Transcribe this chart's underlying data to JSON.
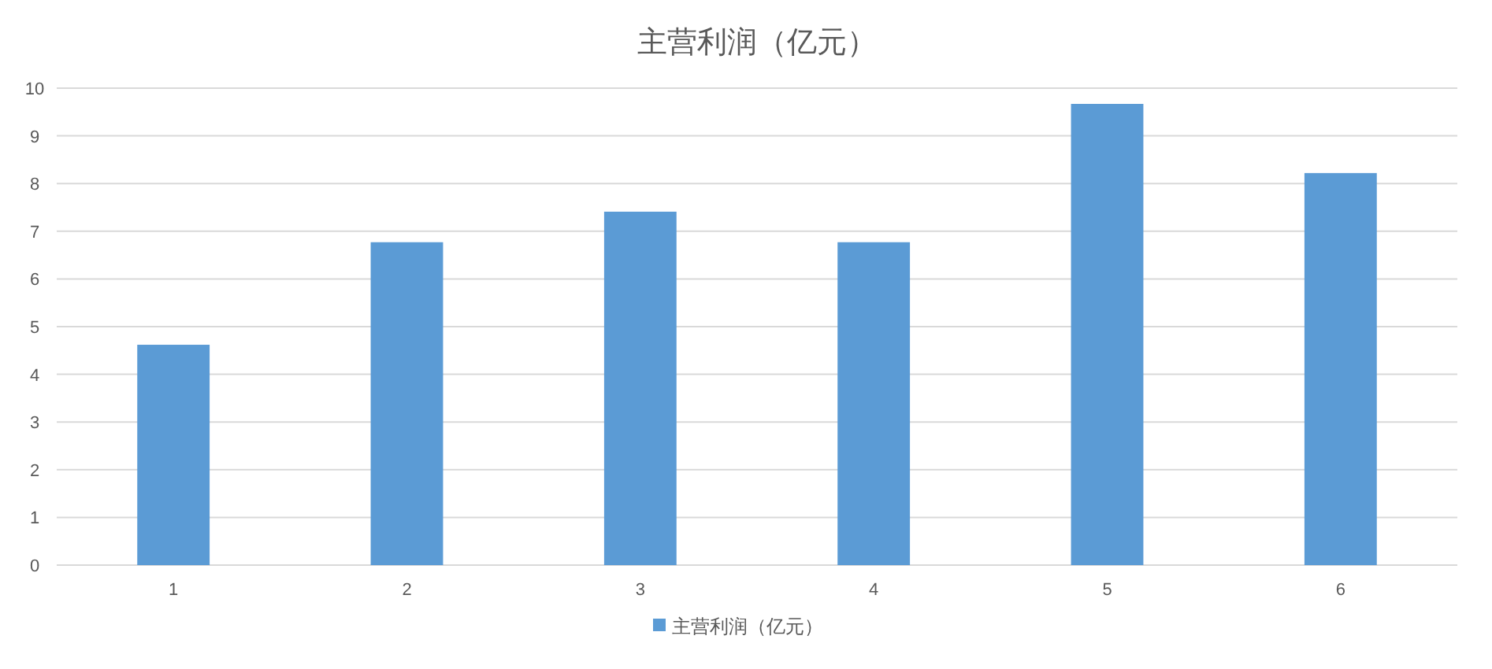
{
  "chart_data": {
    "type": "bar",
    "title": "主营利润（亿元）",
    "categories": [
      "1",
      "2",
      "3",
      "4",
      "5",
      "6"
    ],
    "series": [
      {
        "name": "主营利润（亿元）",
        "color": "#5b9bd5",
        "values": [
          4.62,
          6.77,
          7.41,
          6.77,
          9.67,
          8.22
        ]
      }
    ],
    "ylim": [
      0,
      10
    ],
    "yticks": [
      0,
      1,
      2,
      3,
      4,
      5,
      6,
      7,
      8,
      9,
      10
    ],
    "grid": "y",
    "legend": "bottom"
  }
}
